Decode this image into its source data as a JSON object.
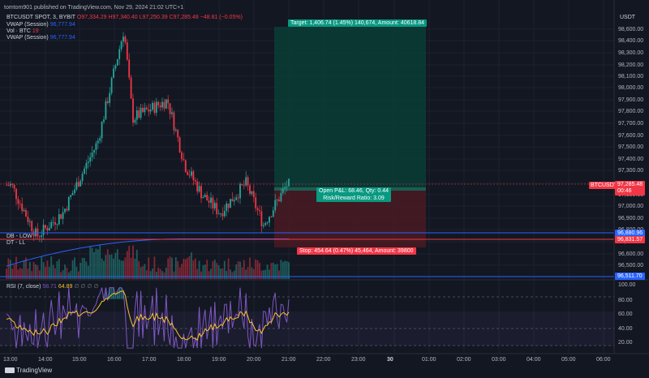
{
  "header": {
    "published": "tomtom901 published on TradingView.com, Nov 29, 2024 21:02 UTC+1",
    "symbol": "BTCUSDT SPOT, 3, BYBIT",
    "ohlc": {
      "o": "O97,334.29",
      "h": "H97,340.40",
      "l": "L97,250.39",
      "c": "C97,285.48",
      "chg": "−48.81 (−0.05%)"
    },
    "vwap1": {
      "label": "VWAP (Session)",
      "value": "96,777.94"
    },
    "vol": {
      "label": "Vol · BTC",
      "value": "19"
    },
    "vwap2": {
      "label": "VWAP (Session)",
      "value": "96,777.94"
    }
  },
  "currency": "USDT",
  "price_ticks": [
    "98,600.00",
    "98,400.00",
    "98,300.00",
    "98,200.00",
    "98,100.00",
    "98,000.00",
    "97,900.00",
    "97,800.00",
    "97,700.00",
    "97,600.00",
    "97,500.00",
    "97,400.00",
    "97,300.00",
    "97,200.00",
    "97,100.00",
    "97,000.00",
    "96,900.00",
    "96,800.00",
    "96,700.00",
    "96,600.00",
    "96,500.00"
  ],
  "price_tag": {
    "symbol": "BTCUSDT",
    "value": "97,285.48",
    "countdown": "00:46"
  },
  "levels": [
    {
      "label": "DB - LOW",
      "value": "96,880.96",
      "color": "#2962ff"
    },
    {
      "label": "DT - LL",
      "value": "96,831.57",
      "color": "#f23645"
    },
    {
      "label": "",
      "value": "96,511.70",
      "color": "#2962ff"
    }
  ],
  "position": {
    "target": "Target: 1,406.74 (1.45%) 140,674, Amount: 40618.84",
    "stop": "Stop: 454.64 (0.47%) 45,464, Amount: 39800",
    "pnl_line1": "Open P&L: 68.46, Qty: 0.44",
    "pnl_line2": "Risk/Reward Ratio: 3.09"
  },
  "rsi": {
    "label": "RSI (7, close)",
    "v1": "58.71",
    "v2": "64.89",
    "ticks": [
      "100.00",
      "80.00",
      "60.00",
      "40.00",
      "20.00"
    ]
  },
  "time_ticks": [
    "13:00",
    "14:00",
    "15:00",
    "16:00",
    "17:00",
    "18:00",
    "19:00",
    "20:00",
    "21:00",
    "22:00",
    "23:00",
    "30",
    "01:00",
    "02:00",
    "03:00",
    "04:00",
    "05:00",
    "06:00"
  ],
  "footer": {
    "brand": "TradingView"
  },
  "colors": {
    "up": "#26a69a",
    "down": "#f23645",
    "bg": "#131722",
    "vwap": "#2962ff",
    "rsi": "#7e57c2",
    "rsi_ma": "#f7c32b"
  },
  "chart_data": {
    "type": "candlestick",
    "symbol": "BTCUSDT",
    "timeframe": "3",
    "x_range": [
      "13:00",
      "06:00"
    ],
    "y_range": [
      96500,
      98650
    ],
    "key_points": [
      {
        "time": "13:00",
        "price": 97300
      },
      {
        "time": "13:45",
        "price": 96850
      },
      {
        "time": "14:30",
        "price": 97050
      },
      {
        "time": "15:30",
        "price": 97650
      },
      {
        "time": "16:15",
        "price": 98600
      },
      {
        "time": "16:30",
        "price": 97850
      },
      {
        "time": "17:30",
        "price": 98000
      },
      {
        "time": "18:00",
        "price": 97450
      },
      {
        "time": "18:30",
        "price": 97200
      },
      {
        "time": "19:00",
        "price": 97050
      },
      {
        "time": "19:45",
        "price": 97300
      },
      {
        "time": "20:15",
        "price": 96950
      },
      {
        "time": "20:55",
        "price": 97285.48
      }
    ],
    "rsi_range": [
      0,
      100
    ]
  }
}
